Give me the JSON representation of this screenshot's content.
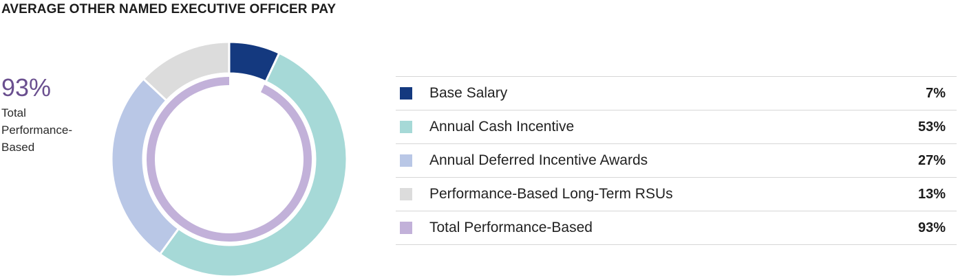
{
  "title": "AVERAGE OTHER NAMED EXECUTIVE OFFICER PAY",
  "callout": {
    "value": "93%",
    "label_lines": [
      "Total",
      "Performance-",
      "Based"
    ]
  },
  "chart_data": {
    "type": "pie",
    "title": "AVERAGE OTHER NAMED EXECUTIVE OFFICER PAY",
    "slices": [
      {
        "label": "Base Salary",
        "value": 7,
        "display": "7%",
        "color": "#14397f"
      },
      {
        "label": "Annual Cash Incentive",
        "value": 53,
        "display": "53%",
        "color": "#a6d9d7"
      },
      {
        "label": "Annual Deferred Incentive Awards",
        "value": 27,
        "display": "27%",
        "color": "#b9c7e6"
      },
      {
        "label": "Performance-Based Long-Term RSUs",
        "value": 13,
        "display": "13%",
        "color": "#dcdcdc"
      }
    ],
    "inner_ring": {
      "label": "Total Performance-Based",
      "value": 93,
      "display": "93%",
      "color": "#c2b1d9",
      "start_after": 7
    }
  },
  "legend": [
    {
      "label": "Base Salary",
      "value": "7%",
      "color": "#14397f"
    },
    {
      "label": "Annual Cash Incentive",
      "value": "53%",
      "color": "#a6d9d7"
    },
    {
      "label": "Annual Deferred Incentive Awards",
      "value": "27%",
      "color": "#b9c7e6"
    },
    {
      "label": "Performance-Based Long-Term RSUs",
      "value": "13%",
      "color": "#dcdcdc"
    },
    {
      "label": "Total Performance-Based",
      "value": "93%",
      "color": "#c2b1d9"
    }
  ]
}
